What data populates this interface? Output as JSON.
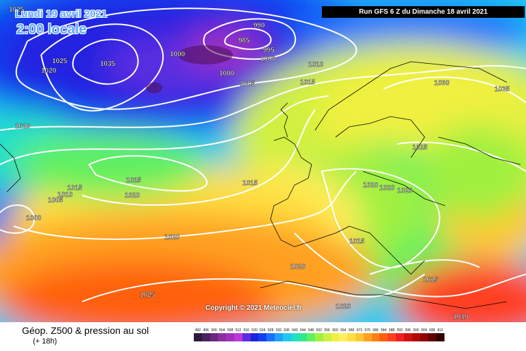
{
  "header": {
    "date": "Lundi 19 avril 2021",
    "time": "2:00 locale",
    "run": "Run GFS 6 Z du Dimanche 18 avril 2021"
  },
  "copyright": "Copyright © 2021 Meteociel.fr",
  "legend": {
    "title": "Géop. Z500 & pression au sol",
    "subtitle": "(+ 18h)",
    "scale": [
      {
        "v": "492",
        "c": "#2a1a3a"
      },
      {
        "v": "496",
        "c": "#4b2060"
      },
      {
        "v": "500",
        "c": "#6a2680"
      },
      {
        "v": "504",
        "c": "#8a2ea0"
      },
      {
        "v": "508",
        "c": "#a030c0"
      },
      {
        "v": "512",
        "c": "#b838d8"
      },
      {
        "v": "516",
        "c": "#5a2ee0"
      },
      {
        "v": "520",
        "c": "#2020e0"
      },
      {
        "v": "524",
        "c": "#1040f0"
      },
      {
        "v": "528",
        "c": "#1870ff"
      },
      {
        "v": "532",
        "c": "#20a0ff"
      },
      {
        "v": "536",
        "c": "#20c8f0"
      },
      {
        "v": "540",
        "c": "#20e0c8"
      },
      {
        "v": "544",
        "c": "#30e890"
      },
      {
        "v": "548",
        "c": "#60f060"
      },
      {
        "v": "552",
        "c": "#a0f040"
      },
      {
        "v": "556",
        "c": "#d0f040"
      },
      {
        "v": "560",
        "c": "#f0f040"
      },
      {
        "v": "564",
        "c": "#fff060"
      },
      {
        "v": "568",
        "c": "#ffe040"
      },
      {
        "v": "572",
        "c": "#ffc830"
      },
      {
        "v": "576",
        "c": "#ffa020"
      },
      {
        "v": "580",
        "c": "#ff8010"
      },
      {
        "v": "584",
        "c": "#ff6010"
      },
      {
        "v": "588",
        "c": "#ff4020"
      },
      {
        "v": "592",
        "c": "#f02020"
      },
      {
        "v": "596",
        "c": "#d01010"
      },
      {
        "v": "600",
        "c": "#b00808"
      },
      {
        "v": "604",
        "c": "#900000"
      },
      {
        "v": "608",
        "c": "#600000"
      },
      {
        "v": "612",
        "c": "#300000"
      }
    ]
  },
  "isobar_labels": [
    {
      "v": "1025"
    },
    {
      "v": "1020"
    },
    {
      "v": "1010"
    },
    {
      "v": "1025"
    },
    {
      "v": "1035"
    },
    {
      "v": "990"
    },
    {
      "v": "985"
    },
    {
      "v": "995"
    },
    {
      "v": "1000"
    },
    {
      "v": "1000"
    },
    {
      "v": "1000"
    },
    {
      "v": "1005"
    },
    {
      "v": "1010"
    },
    {
      "v": "1015"
    },
    {
      "v": "1030"
    },
    {
      "v": "1035"
    },
    {
      "v": "1025"
    },
    {
      "v": "1025"
    },
    {
      "v": "1015"
    },
    {
      "v": "1010"
    },
    {
      "v": "1005"
    },
    {
      "v": "1000"
    },
    {
      "v": "1020"
    },
    {
      "v": "1015"
    },
    {
      "v": "1020"
    },
    {
      "v": "1020"
    },
    {
      "v": "1020"
    },
    {
      "v": "1020"
    },
    {
      "v": "1015"
    },
    {
      "v": "1020"
    },
    {
      "v": "1015"
    },
    {
      "v": "1025"
    },
    {
      "v": "1020"
    },
    {
      "v": "1010"
    }
  ]
}
